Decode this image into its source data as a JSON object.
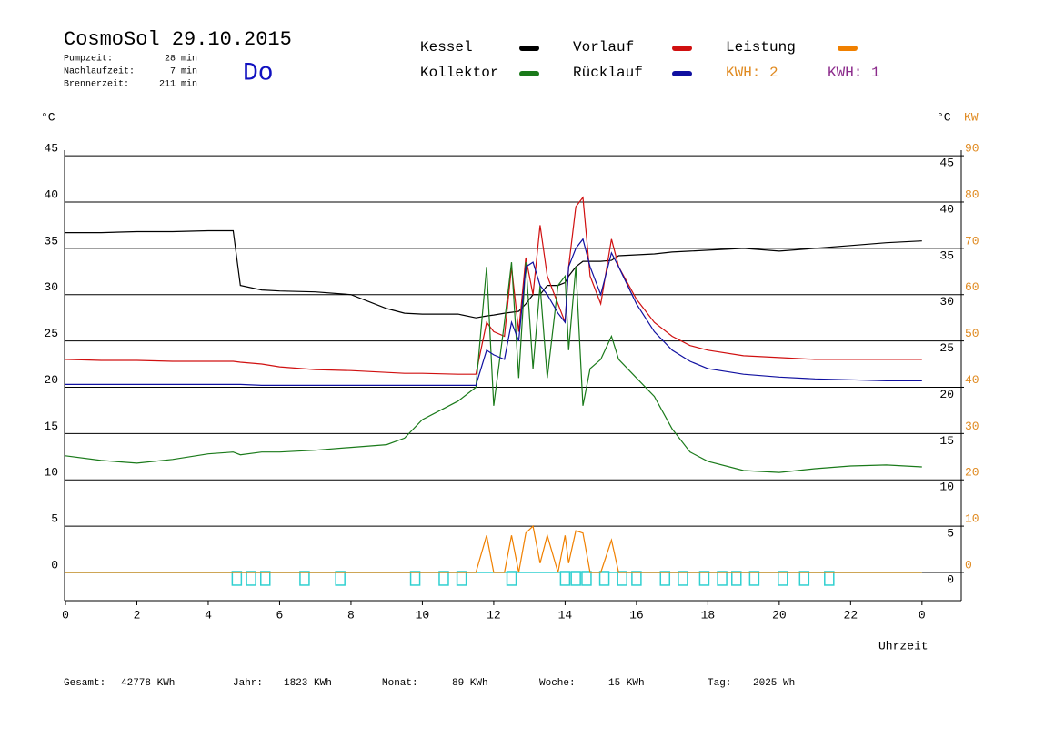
{
  "chart_data": {
    "type": "line",
    "title": "CosmoSol 29.10.2015",
    "weekday": "Do",
    "info": [
      {
        "label": "Pumpzeit:",
        "value": "28 min"
      },
      {
        "label": "Nachlaufzeit:",
        "value": "7 min"
      },
      {
        "label": "Brennerzeit:",
        "value": "211 min"
      }
    ],
    "y_label": "°C",
    "y_right_label": "°C",
    "y2_label": "KW",
    "x_label": "Uhrzeit",
    "xlim": [
      0,
      25.1
    ],
    "xticks": [
      0,
      2,
      4,
      6,
      8,
      10,
      12,
      14,
      16,
      18,
      20,
      22,
      {
        "value": 24,
        "label": "0"
      }
    ],
    "ylim": [
      -3.05,
      45.6
    ],
    "yticks": [
      0,
      5,
      10,
      15,
      20,
      25,
      30,
      35,
      40,
      45
    ],
    "y2lim": [
      -6.1,
      91.2
    ],
    "y2ticks": [
      0,
      10,
      20,
      30,
      40,
      50,
      60,
      70,
      80,
      90
    ],
    "grid": true,
    "x": [
      0,
      1,
      2,
      3,
      4,
      4.7,
      4.9,
      5.5,
      6,
      7,
      8,
      9,
      9.5,
      10,
      11,
      11.5,
      11.8,
      12,
      12.3,
      12.5,
      12.7,
      12.9,
      13.1,
      13.3,
      13.5,
      13.8,
      14,
      14.1,
      14.3,
      14.5,
      14.7,
      15,
      15.3,
      15.5,
      16,
      16.5,
      17,
      17.5,
      18,
      19,
      20,
      21,
      22,
      23,
      24
    ],
    "series": [
      {
        "name": "Kessel",
        "color": "#000000",
        "values": [
          36.7,
          36.7,
          36.8,
          36.8,
          36.9,
          36.9,
          31,
          30.5,
          30.4,
          30.3,
          30,
          28.5,
          28,
          27.9,
          27.9,
          27.5,
          27.7,
          27.8,
          28,
          28.1,
          28.2,
          29,
          30,
          30,
          31,
          31,
          31.3,
          32,
          33,
          33.6,
          33.6,
          33.6,
          33.7,
          34.2,
          34.3,
          34.4,
          34.6,
          34.7,
          34.8,
          35,
          34.7,
          35,
          35.3,
          35.6,
          35.8
        ]
      },
      {
        "name": "Vorlauf",
        "color": "#d01010",
        "values": [
          23,
          22.9,
          22.9,
          22.8,
          22.8,
          22.8,
          22.7,
          22.5,
          22.2,
          21.9,
          21.8,
          21.6,
          21.5,
          21.5,
          21.4,
          21.4,
          27,
          26,
          25.5,
          33,
          26,
          34,
          30,
          37.5,
          32,
          29,
          27,
          33,
          39.5,
          40.5,
          32,
          29,
          36,
          33,
          29.5,
          27,
          25.5,
          24.5,
          24,
          23.4,
          23.2,
          23,
          23,
          23,
          23
        ]
      },
      {
        "name": "Leistung",
        "color": "#f08000",
        "axis": "y2",
        "values": [
          0,
          0,
          0,
          0,
          0,
          0,
          0,
          0,
          0,
          0,
          0,
          0,
          0,
          0,
          0,
          0,
          8,
          0,
          0,
          8,
          0,
          8.5,
          10,
          2,
          8,
          0,
          8,
          2,
          9,
          8.5,
          0,
          0,
          7,
          0,
          0,
          0,
          0,
          0,
          0,
          0,
          0,
          0,
          0,
          0,
          0
        ]
      },
      {
        "name": "Kollektor",
        "color": "#1a7a1a",
        "values": [
          12.6,
          12.1,
          11.8,
          12.2,
          12.8,
          13,
          12.7,
          13,
          13,
          13.2,
          13.5,
          13.8,
          14.5,
          16.5,
          18.5,
          20,
          33,
          18,
          27,
          33.5,
          21,
          33.5,
          22,
          31,
          21,
          31,
          32,
          24,
          33,
          18,
          22,
          23,
          25.5,
          23,
          21,
          19,
          15.5,
          13,
          12,
          11,
          10.8,
          11.2,
          11.5,
          11.6,
          11.4
        ]
      },
      {
        "name": "Rücklauf",
        "color": "#1010a0",
        "values": [
          20.3,
          20.3,
          20.3,
          20.3,
          20.3,
          20.3,
          20.3,
          20.2,
          20.2,
          20.2,
          20.2,
          20.2,
          20.2,
          20.2,
          20.2,
          20.2,
          24,
          23.5,
          23,
          27,
          25,
          33,
          33.5,
          31,
          30,
          28,
          27,
          33,
          35,
          36,
          33,
          30,
          34.5,
          33,
          29,
          26,
          24,
          22.8,
          22,
          21.4,
          21.1,
          20.9,
          20.8,
          20.7,
          20.7
        ]
      }
    ],
    "kwh_labels": [
      {
        "text": "KWH: 2",
        "color": "#e08a20"
      },
      {
        "text": "KWH: 1",
        "color": "#8b2a8b"
      }
    ],
    "pump_color": "#30d0d0",
    "pump_events": [
      4.8,
      5.2,
      5.6,
      6.7,
      7.7,
      9.8,
      10.6,
      11.1,
      12.5,
      14.0,
      14.3,
      14.6,
      15.1,
      15.6,
      16.0,
      16.8,
      17.3,
      17.9,
      18.4,
      18.8,
      19.3,
      20.1,
      20.7,
      21.4
    ],
    "footer": [
      {
        "label": "Gesamt:",
        "value": "42778 KWh"
      },
      {
        "label": "Jahr:",
        "value": "1823 KWh"
      },
      {
        "label": "Monat:",
        "value": "89 KWh"
      },
      {
        "label": "Woche:",
        "value": "15 KWh"
      },
      {
        "label": "Tag:",
        "value": "2025 Wh"
      }
    ]
  }
}
